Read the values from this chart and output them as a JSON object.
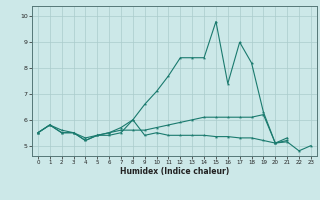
{
  "x": [
    0,
    1,
    2,
    3,
    4,
    5,
    6,
    7,
    8,
    9,
    10,
    11,
    12,
    13,
    14,
    15,
    16,
    17,
    18,
    19,
    20,
    21,
    22,
    23
  ],
  "line1": [
    5.5,
    5.8,
    5.5,
    5.5,
    5.2,
    5.4,
    5.4,
    5.5,
    6.0,
    5.4,
    5.5,
    5.4,
    5.4,
    5.4,
    5.4,
    5.35,
    5.35,
    5.3,
    5.3,
    5.2,
    5.1,
    5.15,
    4.8,
    5.0
  ],
  "line2": [
    5.5,
    5.8,
    5.5,
    5.5,
    5.2,
    5.4,
    5.5,
    5.7,
    6.0,
    6.6,
    7.1,
    7.7,
    8.4,
    8.4,
    8.4,
    9.8,
    7.4,
    9.0,
    8.2,
    6.3,
    5.1,
    5.3,
    null,
    null
  ],
  "line3": [
    5.5,
    5.8,
    5.6,
    5.5,
    5.3,
    5.4,
    5.5,
    5.6,
    5.6,
    5.6,
    5.7,
    5.8,
    5.9,
    6.0,
    6.1,
    6.1,
    6.1,
    6.1,
    6.1,
    6.2,
    5.1,
    5.2,
    null,
    null
  ],
  "color": "#1a7a6e",
  "bg_color": "#cce8e8",
  "grid_color": "#aacccc",
  "xlabel": "Humidex (Indice chaleur)",
  "ylim": [
    4.6,
    10.4
  ],
  "xlim": [
    -0.5,
    23.5
  ],
  "yticks": [
    5,
    6,
    7,
    8,
    9,
    10
  ],
  "xticks": [
    0,
    1,
    2,
    3,
    4,
    5,
    6,
    7,
    8,
    9,
    10,
    11,
    12,
    13,
    14,
    15,
    16,
    17,
    18,
    19,
    20,
    21,
    22,
    23
  ]
}
